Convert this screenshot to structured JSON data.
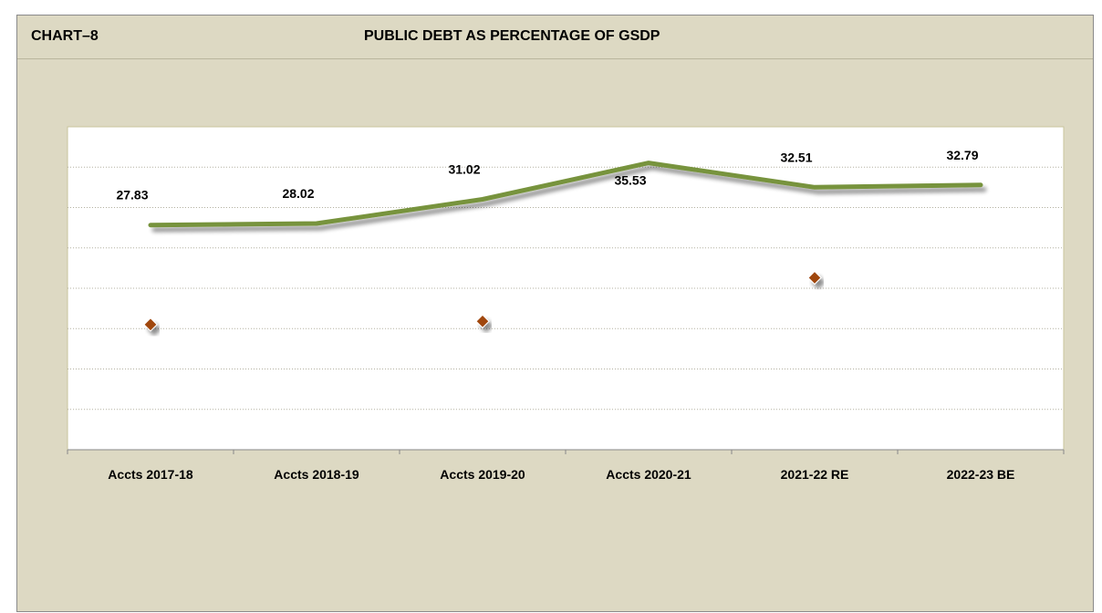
{
  "header": {
    "chart_number": "CHART–8",
    "title": "PUBLIC DEBT AS PERCENTAGE OF GSDP"
  },
  "colors": {
    "line": "#77933c",
    "marker": "#a0470f",
    "plot_bg": "#ffffff",
    "panel_bg": "#ddd9c3",
    "grid": "#b3b0a0"
  },
  "chart_data": {
    "type": "line",
    "categories": [
      "Accts 2017-18",
      "Accts 2018-19",
      "Accts 2019-20",
      "Accts 2020-21",
      "2021-22 RE",
      "2022-23 BE"
    ],
    "series": [
      {
        "values": [
          27.83,
          28.02,
          31.02,
          35.53,
          32.51,
          32.79
        ],
        "style": "line",
        "data_labels": [
          "27.83",
          "28.02",
          "31.02",
          "35.53",
          "32.51",
          "32.79"
        ]
      },
      {
        "points": [
          {
            "x": 0.5,
            "y": 15.5
          },
          {
            "x": 2.5,
            "y": 15.9
          },
          {
            "x": 4.5,
            "y": 21.3
          }
        ],
        "style": "marker-diamond"
      }
    ],
    "ylim": [
      0,
      40
    ],
    "grid": true,
    "xlabel": "",
    "ylabel": ""
  }
}
